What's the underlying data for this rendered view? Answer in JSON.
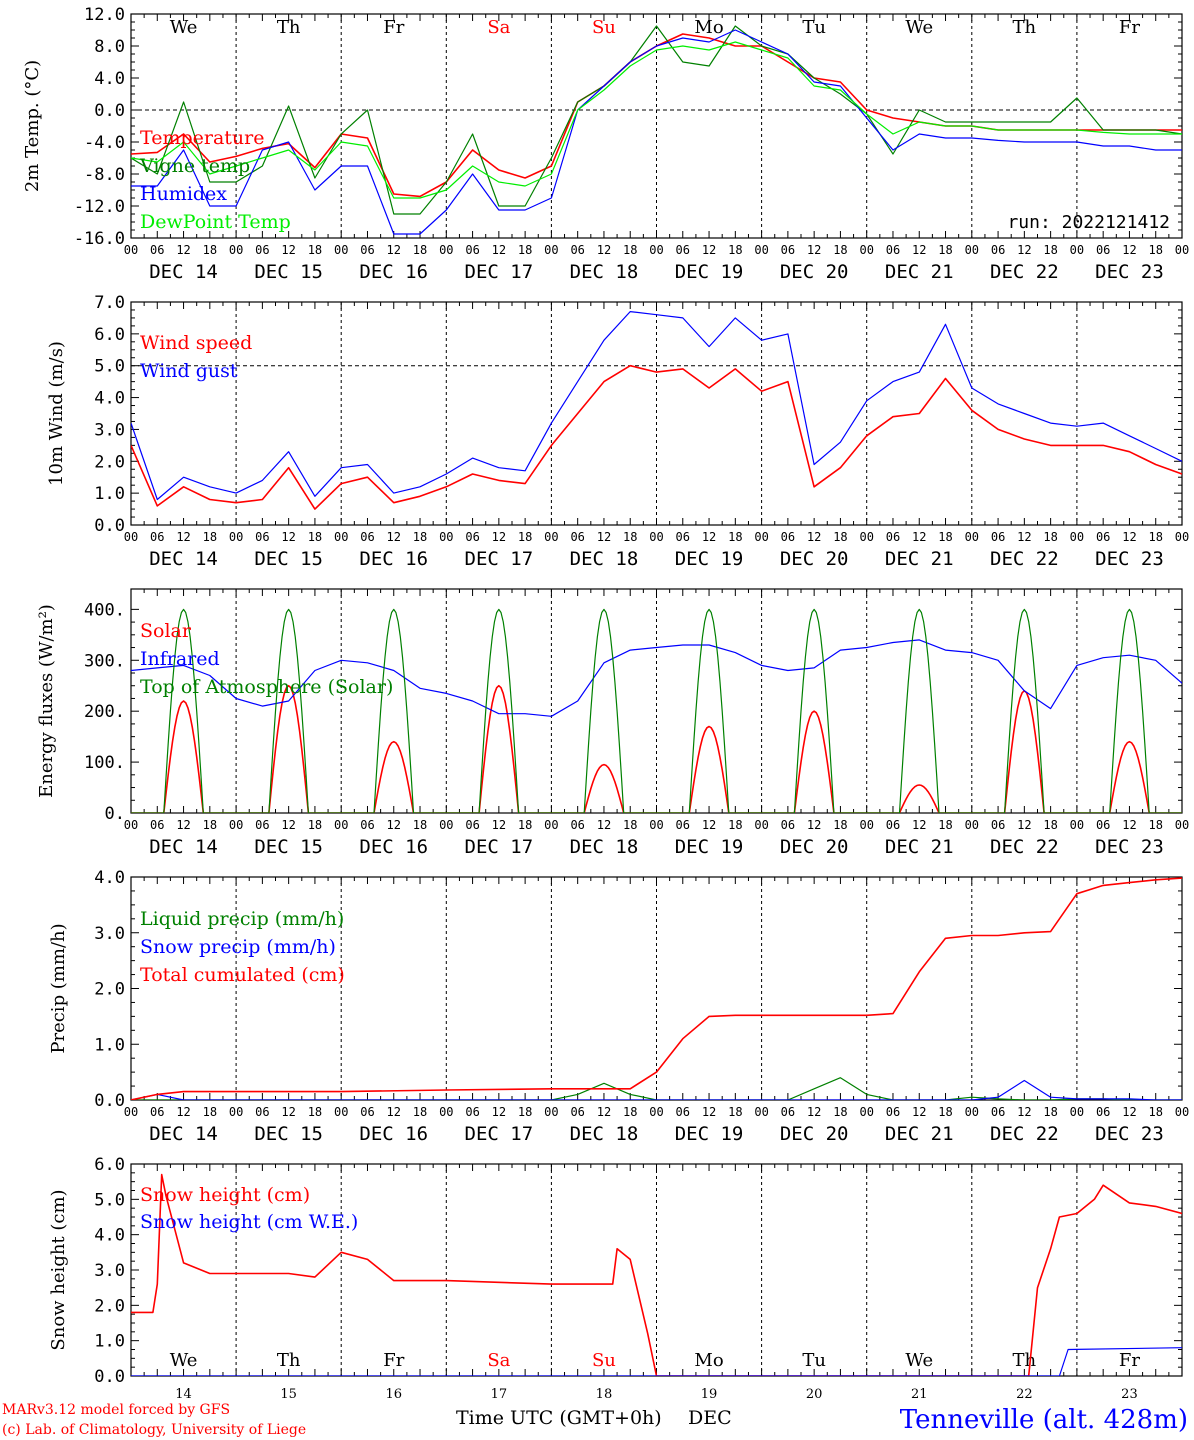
{
  "footer": {
    "credit_line1": "MARv3.12 model forced by GFS",
    "credit_line2": "(c) Lab. of Climatology, University of Liege",
    "xlabel": "Time UTC (GMT+0h)",
    "month": "DEC",
    "station": "Tenneville (alt. 428m)"
  },
  "colors": {
    "red": "#ff0000",
    "green": "#008000",
    "blue": "#0000ff",
    "lightgreen": "#00ee00",
    "weekend": "#ff0000"
  },
  "days": [
    "We",
    "Th",
    "Fr",
    "Sa",
    "Su",
    "Mo",
    "Tu",
    "We",
    "Th",
    "Fr"
  ],
  "weekend_flags": [
    false,
    false,
    false,
    true,
    true,
    false,
    false,
    false,
    false,
    false
  ],
  "date_labels": [
    "DEC 14",
    "DEC 15",
    "DEC 16",
    "DEC 17",
    "DEC 18",
    "DEC 19",
    "DEC 20",
    "DEC 21",
    "DEC 22",
    "DEC 23"
  ],
  "bottom_day_numbers": [
    "14",
    "15",
    "16",
    "17",
    "18",
    "19",
    "20",
    "21",
    "22",
    "23"
  ],
  "hour_ticks": [
    "00",
    "06",
    "12",
    "18"
  ],
  "chart_data": [
    {
      "id": "temp",
      "type": "line",
      "ylabel": "2m Temp. (°C)",
      "ylim": [
        -16,
        12
      ],
      "yticks": [
        "12.0",
        "8.0",
        "4.0",
        "0.0",
        "-4.0",
        "-8.0",
        "-12.0",
        "-16.0"
      ],
      "ref_line": 0,
      "run_label": "run: 2022121412",
      "series": [
        {
          "name": "Temperature",
          "color": "#ff0000",
          "x": [
            0,
            6,
            12,
            18,
            24,
            30,
            36,
            42,
            48,
            54,
            60,
            66,
            72,
            78,
            84,
            90,
            96,
            102,
            108,
            114,
            120,
            126,
            132,
            138,
            144,
            150,
            156,
            162,
            168,
            174,
            180,
            186,
            192,
            198,
            204,
            210,
            216,
            222,
            228,
            234,
            240
          ],
          "y": [
            -5.5,
            -5.3,
            -3,
            -6.5,
            -5.8,
            -4.8,
            -4.2,
            -7.2,
            -3,
            -3.5,
            -10.5,
            -10.8,
            -9,
            -5,
            -7.5,
            -8.5,
            -7,
            1,
            3,
            6,
            8,
            9.5,
            9,
            8,
            8,
            6,
            4,
            3.5,
            0,
            -1,
            -1.5,
            -2,
            -2,
            -2.5,
            -2.5,
            -2.5,
            -2.5,
            -2.5,
            -2.5,
            -2.5,
            -2.5
          ]
        },
        {
          "name": "Vigne temp",
          "color": "#008000",
          "x": [
            0,
            6,
            12,
            18,
            24,
            30,
            36,
            42,
            48,
            54,
            60,
            66,
            72,
            78,
            84,
            90,
            96,
            102,
            108,
            114,
            120,
            126,
            132,
            138,
            144,
            150,
            156,
            162,
            168,
            174,
            180,
            186,
            192,
            198,
            204,
            210,
            216,
            222,
            228,
            234,
            240
          ],
          "y": [
            -6,
            -8,
            1,
            -9,
            -9,
            -7,
            0.5,
            -8.5,
            -3,
            0,
            -13,
            -13,
            -9,
            -3,
            -12,
            -12,
            -6,
            1,
            3,
            6,
            10.5,
            6,
            5.5,
            10.5,
            8,
            7,
            4,
            2,
            -0.5,
            -5.5,
            0,
            -1.5,
            -1.5,
            -1.5,
            -1.5,
            -1.5,
            1.5,
            -2.5,
            -2.5,
            -2.5,
            -3
          ]
        },
        {
          "name": "Humidex",
          "color": "#0000ff",
          "x": [
            0,
            6,
            12,
            18,
            24,
            30,
            36,
            42,
            48,
            54,
            60,
            66,
            72,
            78,
            84,
            90,
            96,
            102,
            108,
            114,
            120,
            126,
            132,
            138,
            144,
            150,
            156,
            162,
            168,
            174,
            180,
            186,
            192,
            198,
            204,
            210,
            216,
            222,
            228,
            234,
            240
          ],
          "y": [
            -9.5,
            -9.5,
            -5,
            -12,
            -12,
            -5,
            -4,
            -10,
            -7,
            -7,
            -15.5,
            -15.5,
            -12.5,
            -8,
            -12.5,
            -12.5,
            -11,
            0,
            3,
            6,
            8,
            9,
            8.5,
            10,
            8.5,
            7,
            3.5,
            3,
            -1,
            -5,
            -3,
            -3.5,
            -3.5,
            -3.8,
            -4,
            -4,
            -4,
            -4.5,
            -4.5,
            -5,
            -5
          ]
        },
        {
          "name": "DewPoint Temp",
          "color": "#00ee00",
          "x": [
            0,
            6,
            12,
            18,
            24,
            30,
            36,
            42,
            48,
            54,
            60,
            66,
            72,
            78,
            84,
            90,
            96,
            102,
            108,
            114,
            120,
            126,
            132,
            138,
            144,
            150,
            156,
            162,
            168,
            174,
            180,
            186,
            192,
            198,
            204,
            210,
            216,
            222,
            228,
            234,
            240
          ],
          "y": [
            -6,
            -6.5,
            -4,
            -8,
            -7,
            -6,
            -5,
            -7.5,
            -4,
            -4.5,
            -11,
            -11,
            -10,
            -7,
            -9,
            -9.5,
            -8,
            0,
            2.5,
            5.5,
            7.5,
            8,
            7.5,
            8.5,
            7.5,
            6.5,
            3,
            2.5,
            -0.5,
            -3,
            -1.5,
            -2,
            -2,
            -2.5,
            -2.5,
            -2.5,
            -2.5,
            -2.8,
            -3,
            -3,
            -3
          ]
        }
      ]
    },
    {
      "id": "wind",
      "type": "line",
      "ylabel": "10m Wind (m/s)",
      "ylim": [
        0,
        7
      ],
      "yticks": [
        "7.0",
        "6.0",
        "5.0",
        "4.0",
        "3.0",
        "2.0",
        "1.0",
        "0.0"
      ],
      "ref_line": 5,
      "series": [
        {
          "name": "Wind speed",
          "color": "#ff0000",
          "x": [
            0,
            6,
            12,
            18,
            24,
            30,
            36,
            42,
            48,
            54,
            60,
            66,
            72,
            78,
            84,
            90,
            96,
            102,
            108,
            114,
            120,
            126,
            132,
            138,
            144,
            150,
            156,
            162,
            168,
            174,
            180,
            186,
            192,
            198,
            204,
            210,
            216,
            222,
            228,
            234,
            240
          ],
          "y": [
            2.5,
            0.6,
            1.2,
            0.8,
            0.7,
            0.8,
            1.8,
            0.5,
            1.3,
            1.5,
            0.7,
            0.9,
            1.2,
            1.6,
            1.4,
            1.3,
            2.5,
            3.5,
            4.5,
            5,
            4.8,
            4.9,
            4.3,
            4.9,
            4.2,
            4.5,
            1.2,
            1.8,
            2.8,
            3.4,
            3.5,
            4.6,
            3.6,
            3,
            2.7,
            2.5,
            2.5,
            2.5,
            2.3,
            1.9,
            1.6
          ]
        },
        {
          "name": "Wind gust",
          "color": "#0000ff",
          "x": [
            0,
            6,
            12,
            18,
            24,
            30,
            36,
            42,
            48,
            54,
            60,
            66,
            72,
            78,
            84,
            90,
            96,
            102,
            108,
            114,
            120,
            126,
            132,
            138,
            144,
            150,
            156,
            162,
            168,
            174,
            180,
            186,
            192,
            198,
            204,
            210,
            216,
            222,
            228,
            234,
            240
          ],
          "y": [
            3.2,
            0.8,
            1.5,
            1.2,
            1.0,
            1.4,
            2.3,
            0.9,
            1.8,
            1.9,
            1.0,
            1.2,
            1.6,
            2.1,
            1.8,
            1.7,
            3.2,
            4.5,
            5.8,
            6.7,
            6.6,
            6.5,
            5.6,
            6.5,
            5.8,
            6.0,
            1.9,
            2.6,
            3.9,
            4.5,
            4.8,
            6.3,
            4.3,
            3.8,
            3.5,
            3.2,
            3.1,
            3.2,
            2.8,
            2.4,
            2.0
          ]
        }
      ]
    },
    {
      "id": "energy",
      "type": "line",
      "ylabel": "Energy fluxes (W/m²)",
      "ylim": [
        0,
        440
      ],
      "yticks": [
        "400.",
        "300.",
        "200.",
        "100.",
        "0."
      ],
      "ytick_values": [
        400,
        300,
        200,
        100,
        0
      ],
      "series": [
        {
          "name": "Solar",
          "color": "#ff0000",
          "peak_hours": [
            12,
            12,
            12,
            12,
            12,
            12,
            12,
            12,
            12,
            12
          ],
          "peak_values": [
            220,
            250,
            140,
            250,
            95,
            170,
            200,
            55,
            240,
            140
          ],
          "half_width_h": 4.5
        },
        {
          "name": "Infrared",
          "color": "#0000ff",
          "x": [
            0,
            6,
            12,
            18,
            24,
            30,
            36,
            42,
            48,
            54,
            60,
            66,
            72,
            78,
            84,
            90,
            96,
            102,
            108,
            114,
            120,
            126,
            132,
            138,
            144,
            150,
            156,
            162,
            168,
            174,
            180,
            186,
            192,
            198,
            204,
            210,
            216,
            222,
            228,
            234,
            240
          ],
          "y": [
            280,
            285,
            290,
            270,
            225,
            210,
            220,
            280,
            300,
            295,
            280,
            245,
            235,
            220,
            195,
            195,
            190,
            220,
            295,
            320,
            325,
            330,
            330,
            315,
            290,
            280,
            285,
            320,
            325,
            335,
            340,
            320,
            315,
            300,
            240,
            205,
            290,
            305,
            310,
            300,
            255
          ]
        },
        {
          "name": "Top of Atmosphere (Solar)",
          "color": "#008000",
          "peak_hours": [
            12,
            12,
            12,
            12,
            12,
            12,
            12,
            12,
            12,
            12
          ],
          "peak_values": [
            400,
            400,
            400,
            400,
            400,
            400,
            400,
            400,
            400,
            400
          ],
          "half_width_h": 4.5
        }
      ]
    },
    {
      "id": "precip",
      "type": "line",
      "ylabel": "Precip (mm/h)",
      "ylim": [
        0,
        4
      ],
      "yticks": [
        "4.0",
        "3.0",
        "2.0",
        "1.0",
        "0.0"
      ],
      "series": [
        {
          "name": "Liquid precip (mm/h)",
          "color": "#008000",
          "x": [
            0,
            90,
            96,
            102,
            108,
            114,
            120,
            150,
            156,
            162,
            168,
            174,
            180,
            186,
            192,
            198,
            204,
            210,
            216,
            222,
            228,
            234,
            240
          ],
          "y": [
            0,
            0,
            0,
            0.1,
            0.3,
            0.1,
            0,
            0,
            0.2,
            0.4,
            0.1,
            0,
            0,
            0,
            0.05,
            0.02,
            0,
            0,
            0.02,
            0.02,
            0,
            0,
            0
          ]
        },
        {
          "name": "Snow precip (mm/h)",
          "color": "#0000ff",
          "x": [
            0,
            6,
            12,
            18,
            24,
            180,
            186,
            192,
            198,
            204,
            210,
            216,
            222,
            228,
            234,
            240
          ],
          "y": [
            0,
            0.1,
            0,
            0,
            0,
            0,
            0,
            0,
            0.05,
            0.35,
            0.05,
            0.02,
            0.02,
            0.02,
            0,
            0
          ]
        },
        {
          "name": "Total cumulated (cm)",
          "color": "#ff0000",
          "x": [
            0,
            6,
            12,
            18,
            24,
            48,
            72,
            96,
            114,
            120,
            126,
            132,
            138,
            144,
            168,
            174,
            180,
            186,
            192,
            198,
            204,
            210,
            216,
            222,
            228,
            234,
            240
          ],
          "y": [
            0,
            0.1,
            0.15,
            0.15,
            0.15,
            0.15,
            0.18,
            0.2,
            0.2,
            0.5,
            1.1,
            1.5,
            1.52,
            1.52,
            1.52,
            1.55,
            2.3,
            2.9,
            2.95,
            2.95,
            3.0,
            3.02,
            3.7,
            3.85,
            3.9,
            3.95,
            3.98
          ]
        }
      ]
    },
    {
      "id": "snow",
      "type": "line",
      "ylabel": "Snow height (cm)",
      "ylim": [
        0,
        6
      ],
      "yticks": [
        "6.0",
        "5.0",
        "4.0",
        "3.0",
        "2.0",
        "1.0",
        "0.0"
      ],
      "series": [
        {
          "name": "Snow height (cm)",
          "color": "#ff0000",
          "x": [
            0,
            5,
            6,
            7,
            8,
            12,
            18,
            24,
            36,
            42,
            48,
            54,
            60,
            66,
            72,
            96,
            110,
            111,
            114,
            118,
            120,
            121,
            205,
            207,
            210,
            212,
            216,
            220,
            222,
            228,
            234,
            240
          ],
          "y": [
            1.8,
            1.8,
            2.6,
            5.7,
            5.1,
            3.2,
            2.9,
            2.9,
            2.9,
            2.8,
            3.5,
            3.3,
            2.7,
            2.7,
            2.7,
            2.6,
            2.6,
            3.6,
            3.3,
            1.2,
            0.0,
            0.0,
            0.0,
            2.5,
            3.6,
            4.5,
            4.6,
            5.0,
            5.4,
            4.9,
            4.8,
            4.6
          ]
        },
        {
          "name": "Snow height (cm W.E.)",
          "color": "#0000ff",
          "x": [
            0,
            212,
            214,
            240
          ],
          "y": [
            0,
            0,
            0.75,
            0.8
          ]
        }
      ]
    }
  ]
}
